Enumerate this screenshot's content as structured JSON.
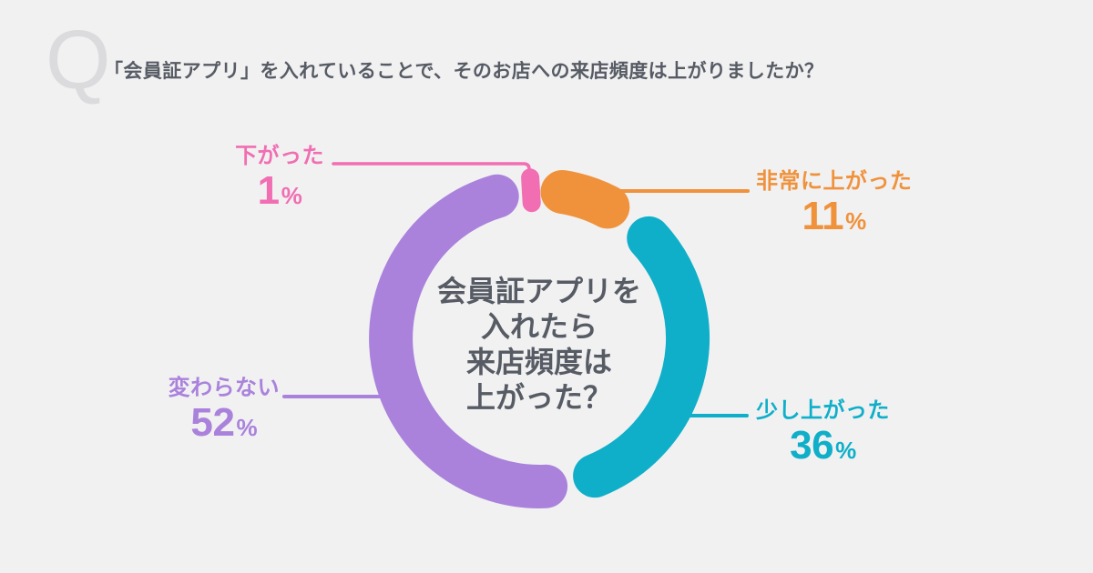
{
  "page": {
    "background": "#F1F1F2",
    "text_color": "#565B64",
    "q_mark_color": "#DBDBDE"
  },
  "header": {
    "q_mark": "Q",
    "question": "「会員証アプリ」を入れていることで、そのお店への来店頻度は上がりましたか？"
  },
  "chart_data": {
    "type": "pie",
    "variant": "donut",
    "direction": "clockwise-from-top",
    "title": "「会員証アプリ」を入れていることで、そのお店への来店頻度は上がりましたか？",
    "center_text_lines": [
      "会員証アプリを",
      "入れたら",
      "来店頻度は",
      "上がった？"
    ],
    "unit": "%",
    "total": 100,
    "segments": [
      {
        "label": "下がった",
        "value": 1,
        "color": "#F16EB2"
      },
      {
        "label": "非常に上がった",
        "value": 11,
        "color": "#F0923C"
      },
      {
        "label": "少し上がった",
        "value": 36,
        "color": "#0FAFC9"
      },
      {
        "label": "変わらない",
        "value": 52,
        "color": "#AA82DC"
      }
    ]
  }
}
